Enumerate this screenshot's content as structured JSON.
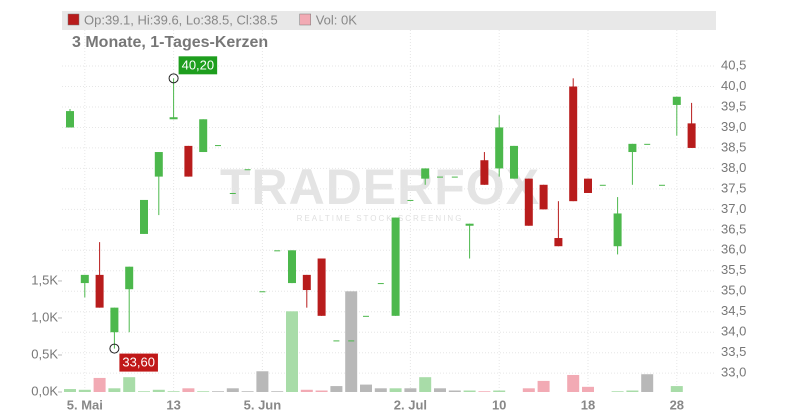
{
  "chart_data": {
    "type": "candlestick",
    "title": "3 Monate, 1-Tages-Kerzen",
    "legend": [
      {
        "label": "Op:39.1, Hi:39.6, Lo:38.5, Cl:38.5",
        "color": "#b81c1c"
      },
      {
        "label": "Vol: 0K",
        "color": "#f2aab4"
      }
    ],
    "watermark": "TRADERFOX",
    "watermark_sub": "REALTIME STOCK SCREENING",
    "categories": [
      null,
      "5. Mai",
      null,
      null,
      null,
      null,
      null,
      "13",
      null,
      null,
      null,
      null,
      null,
      "5. Jun",
      null,
      null,
      null,
      null,
      null,
      null,
      null,
      null,
      null,
      "2. Jul",
      null,
      null,
      null,
      null,
      null,
      "10",
      null,
      null,
      null,
      null,
      null,
      "18",
      null,
      null,
      null,
      null,
      null,
      "28",
      null
    ],
    "open": [
      39.0,
      35.2,
      35.4,
      34.0,
      35.05,
      36.4,
      37.8,
      39.2,
      38.55,
      38.4,
      38.57,
      37.4,
      37.98,
      35.0,
      36.0,
      35.2,
      35.4,
      35.8,
      33.8,
      33.8,
      34.4,
      35.2,
      34.4,
      37.23,
      37.75,
      37.8,
      37.8,
      36.6,
      38.2,
      38.0,
      37.75,
      37.75,
      37.6,
      36.3,
      40.0,
      37.75,
      37.6,
      36.1,
      38.4,
      38.6,
      37.6,
      39.55,
      39.1
    ],
    "high": [
      39.45,
      35.4,
      36.2,
      34.6,
      35.6,
      37.23,
      38.4,
      40.2,
      38.55,
      39.2,
      38.57,
      37.4,
      37.98,
      35.0,
      36.0,
      36.0,
      35.4,
      35.8,
      33.8,
      33.8,
      34.4,
      35.2,
      36.8,
      37.23,
      38.0,
      37.8,
      37.8,
      36.65,
      38.4,
      39.3,
      38.55,
      37.75,
      37.6,
      37.2,
      40.2,
      37.75,
      37.6,
      37.3,
      38.6,
      38.6,
      37.6,
      39.75,
      39.6
    ],
    "low": [
      39.0,
      34.85,
      34.6,
      33.6,
      34.0,
      36.4,
      36.86,
      39.2,
      37.8,
      38.4,
      38.57,
      37.4,
      37.98,
      35.0,
      36.0,
      35.2,
      34.6,
      34.4,
      33.8,
      33.8,
      34.4,
      35.2,
      34.4,
      37.23,
      37.6,
      37.8,
      37.8,
      35.8,
      37.6,
      37.8,
      37.75,
      36.6,
      37.0,
      36.1,
      37.2,
      37.4,
      37.6,
      35.9,
      37.6,
      38.6,
      37.6,
      38.8,
      38.5
    ],
    "close": [
      39.4,
      35.4,
      34.6,
      34.6,
      35.6,
      37.23,
      38.4,
      39.25,
      37.8,
      39.2,
      38.57,
      37.4,
      37.98,
      35.0,
      36.0,
      36.0,
      35.03,
      34.4,
      33.8,
      33.8,
      34.4,
      35.2,
      36.8,
      37.23,
      38.0,
      37.8,
      37.8,
      36.65,
      37.6,
      39.0,
      38.55,
      36.6,
      37.0,
      36.1,
      37.2,
      37.4,
      37.6,
      36.9,
      38.6,
      38.6,
      37.6,
      39.75,
      38.5
    ],
    "volume": [
      0.04,
      0.03,
      0.19,
      0.05,
      0.2,
      0.01,
      0.03,
      0.01,
      0.05,
      0.01,
      0.01,
      0.05,
      0.01,
      0.28,
      0.01,
      1.09,
      0.03,
      0.02,
      0.08,
      1.36,
      0.1,
      0.05,
      0.05,
      0.05,
      0.2,
      0.05,
      0.02,
      0.02,
      0.01,
      0.02,
      0.0,
      0.05,
      0.15,
      0.0,
      0.23,
      0.07,
      0.0,
      0.01,
      0.02,
      0.24,
      0.0,
      0.08,
      0.0
    ],
    "up_color": "#4cb84c",
    "down_color": "#b81c1c",
    "volume_up_color": "#a8dca8",
    "volume_down_color": "#f2aab4",
    "volume_flat_color": "#b8b8b8",
    "ylim": [
      32.54,
      41.38
    ],
    "yticks": [
      {
        "value": 33,
        "label": "33,0"
      },
      {
        "value": 33.5,
        "label": "33,5"
      },
      {
        "value": 34,
        "label": "34,0"
      },
      {
        "value": 34.5,
        "label": "34,5"
      },
      {
        "value": 35,
        "label": "35,0"
      },
      {
        "value": 35.5,
        "label": "35,5"
      },
      {
        "value": 36,
        "label": "36,0"
      },
      {
        "value": 36.5,
        "label": "36,5"
      },
      {
        "value": 37,
        "label": "37,0"
      },
      {
        "value": 37.5,
        "label": "37,5"
      },
      {
        "value": 38,
        "label": "38,0"
      },
      {
        "value": 38.5,
        "label": "38,5"
      },
      {
        "value": 39,
        "label": "39,0"
      },
      {
        "value": 39.5,
        "label": "39,5"
      },
      {
        "value": 40,
        "label": "40,0"
      },
      {
        "value": 40.5,
        "label": "40,5"
      }
    ],
    "y2lim": [
      0,
      4.89
    ],
    "y2ticks": [
      {
        "value": 0,
        "label": "0,0K"
      },
      {
        "value": 0.5,
        "label": "0,5K"
      },
      {
        "value": 1,
        "label": "1,0K"
      },
      {
        "value": 1.5,
        "label": "1,5K"
      }
    ],
    "annotations": [
      {
        "label": "40,20",
        "value": 40.2,
        "color": "#1e9e1e"
      },
      {
        "label": "33,60",
        "value": 33.6,
        "color": "#c01818"
      }
    ],
    "grid": true
  }
}
